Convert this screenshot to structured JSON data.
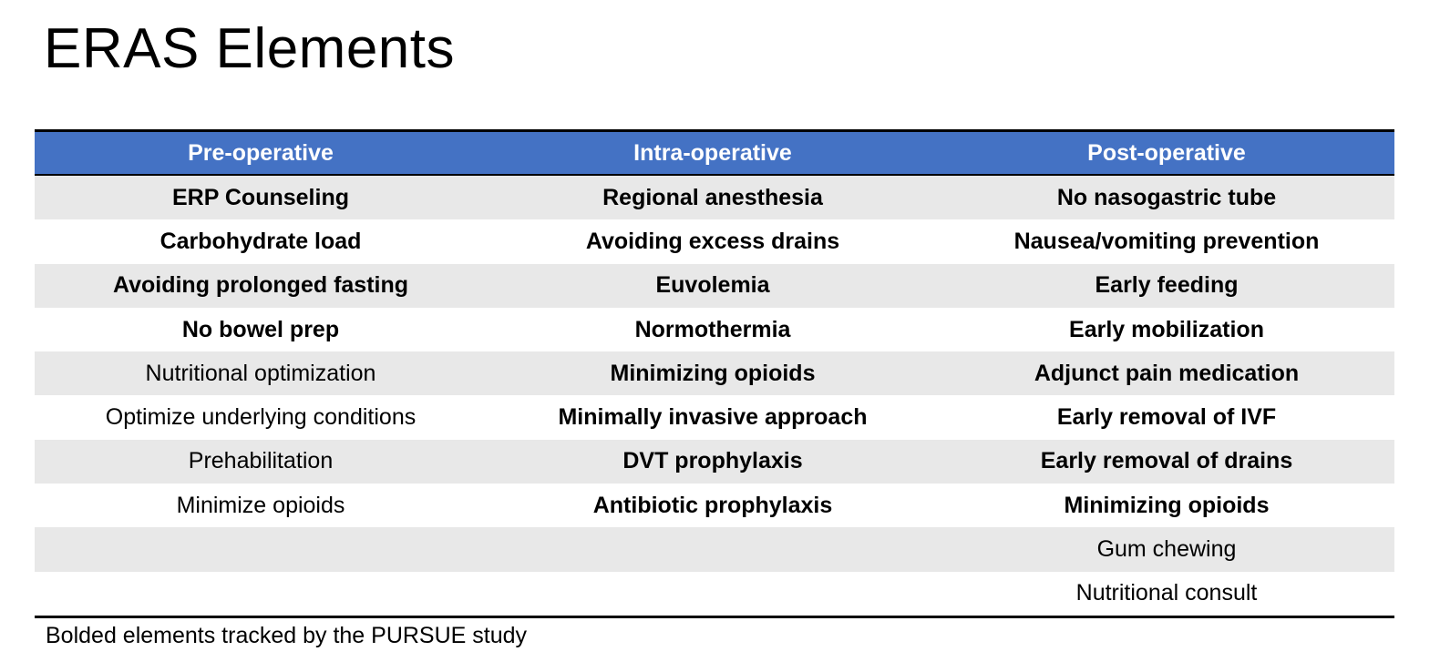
{
  "title": "ERAS Elements",
  "colors": {
    "header_bg": "#4472c4",
    "header_text": "#ffffff",
    "stripe_row": "#e8e8e8",
    "plain_row": "#ffffff"
  },
  "table": {
    "headers": [
      "Pre-operative",
      "Intra-operative",
      "Post-operative"
    ],
    "rows": [
      [
        {
          "text": "ERP Counseling",
          "bold": true
        },
        {
          "text": "Regional anesthesia",
          "bold": true
        },
        {
          "text": "No nasogastric tube",
          "bold": true
        }
      ],
      [
        {
          "text": "Carbohydrate load",
          "bold": true
        },
        {
          "text": "Avoiding excess drains",
          "bold": true
        },
        {
          "text": "Nausea/vomiting prevention",
          "bold": true
        }
      ],
      [
        {
          "text": "Avoiding prolonged fasting",
          "bold": true
        },
        {
          "text": "Euvolemia",
          "bold": true
        },
        {
          "text": "Early feeding",
          "bold": true
        }
      ],
      [
        {
          "text": "No bowel prep",
          "bold": true
        },
        {
          "text": "Normothermia",
          "bold": true
        },
        {
          "text": "Early mobilization",
          "bold": true
        }
      ],
      [
        {
          "text": "Nutritional optimization",
          "bold": false
        },
        {
          "text": "Minimizing opioids",
          "bold": true
        },
        {
          "text": "Adjunct pain medication",
          "bold": true
        }
      ],
      [
        {
          "text": "Optimize underlying conditions",
          "bold": false
        },
        {
          "text": "Minimally invasive approach",
          "bold": true
        },
        {
          "text": "Early removal of IVF",
          "bold": true
        }
      ],
      [
        {
          "text": "Prehabilitation",
          "bold": false
        },
        {
          "text": "DVT prophylaxis",
          "bold": true
        },
        {
          "text": "Early removal of drains",
          "bold": true
        }
      ],
      [
        {
          "text": "Minimize opioids",
          "bold": false
        },
        {
          "text": "Antibiotic prophylaxis",
          "bold": true
        },
        {
          "text": "Minimizing opioids",
          "bold": true
        }
      ],
      [
        {
          "text": "",
          "bold": false
        },
        {
          "text": "",
          "bold": false
        },
        {
          "text": "Gum chewing",
          "bold": false
        }
      ],
      [
        {
          "text": "",
          "bold": false
        },
        {
          "text": "",
          "bold": false
        },
        {
          "text": "Nutritional consult",
          "bold": false
        }
      ]
    ]
  },
  "footnote": "Bolded elements tracked by the PURSUE study"
}
